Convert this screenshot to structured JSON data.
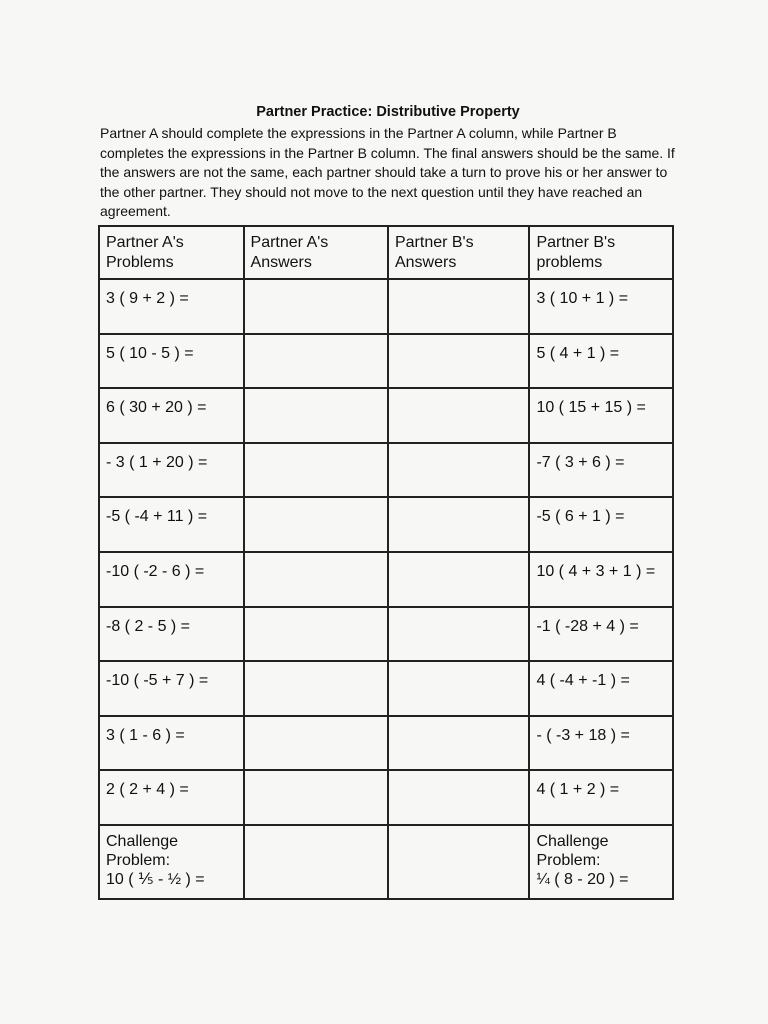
{
  "title": "Partner Practice: Distributive Property",
  "instructions": "Partner A should complete the expressions in the Partner A column, while Partner B completes the expressions in the Partner B column. The final answers should be the same. If the answers are not the same, each partner should take a turn to prove his or her answer to the other partner. They should not move to the next question until they have reached an agreement.",
  "headers": [
    "Partner A's Problems",
    "Partner A's Answers",
    "Partner B's Answers",
    "Partner B's problems"
  ],
  "rows": [
    {
      "a": "3 ( 9 + 2 ) =",
      "b": "3 ( 10 + 1 ) ="
    },
    {
      "a": "5 ( 10 - 5 ) =",
      "b": "5 ( 4 + 1 ) ="
    },
    {
      "a": "6 ( 30 + 20 ) =",
      "b": "10 ( 15 + 15 ) ="
    },
    {
      "a": "- 3 ( 1 + 20 ) =",
      "b": "-7 ( 3 + 6 ) ="
    },
    {
      "a": "-5 ( -4 + 11 ) =",
      "b": "-5 ( 6 + 1 ) ="
    },
    {
      "a": "-10 ( -2 - 6 ) =",
      "b": "10 ( 4 + 3 + 1 ) ="
    },
    {
      "a": "-8 ( 2 - 5 ) =",
      "b": "-1 ( -28 + 4 ) ="
    },
    {
      "a": "-10 ( -5 + 7 ) =",
      "b": "4 ( -4 + -1 ) ="
    },
    {
      "a": "3 ( 1 - 6 ) =",
      "b": "- ( -3 + 18 ) ="
    },
    {
      "a": "2 ( 2 + 4 ) =",
      "b": "4 ( 1 + 2 ) ="
    }
  ],
  "challenge": {
    "label1": "Challenge",
    "label2": "Problem:",
    "a": "10 ( ⅕ - ½ ) =",
    "b": "¼ ( 8 - 20 ) ="
  }
}
